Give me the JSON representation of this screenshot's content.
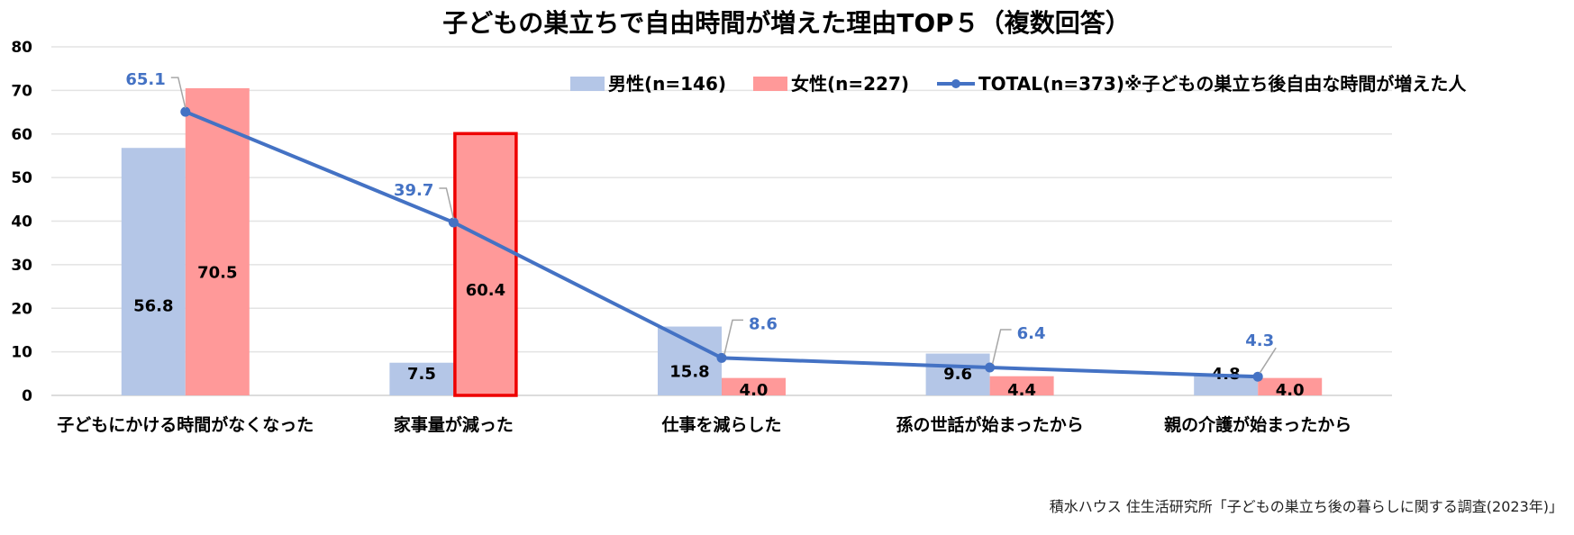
{
  "chart_data": {
    "type": "bar",
    "title": "子どもの巣立ちで自由時間が増えた理由TOP５（複数回答）",
    "categories": [
      "子どもにかける時間がなくなった",
      "家事量が減った",
      "仕事を減らした",
      "孫の世話が始まったから",
      "親の介護が始まったから"
    ],
    "y_ticks": [
      "0",
      "10",
      "20",
      "30",
      "40",
      "50",
      "60",
      "70",
      "80"
    ],
    "ylim": [
      0,
      80
    ],
    "grid": true,
    "legend_position": "top-right",
    "highlight_index": 1,
    "series": [
      {
        "name": "男性(n=146)",
        "type": "bar",
        "color": "#b4c6e7",
        "values": [
          56.8,
          7.5,
          15.8,
          9.6,
          4.8
        ],
        "labels": [
          "56.8",
          "7.5",
          "15.8",
          "9.6",
          "4.8"
        ]
      },
      {
        "name": "女性(n=227)",
        "type": "bar",
        "color": "#ff9999",
        "values": [
          70.5,
          60.4,
          4.0,
          4.4,
          4.0
        ],
        "labels": [
          "70.5",
          "60.4",
          "4.0",
          "4.4",
          "4.0"
        ]
      },
      {
        "name": "TOTAL(n=373)※子どもの巣立ち後自由な時間が増えた人",
        "type": "line",
        "color": "#4472c4",
        "values": [
          65.1,
          39.7,
          8.6,
          6.4,
          4.3
        ],
        "labels": [
          "65.1",
          "39.7",
          "8.6",
          "6.4",
          "4.3"
        ]
      }
    ],
    "highlight_color": "#ee0000"
  },
  "source": "積水ハウス 住生活研究所「子どもの巣立ち後の暮らしに関する調査(2023年)」"
}
